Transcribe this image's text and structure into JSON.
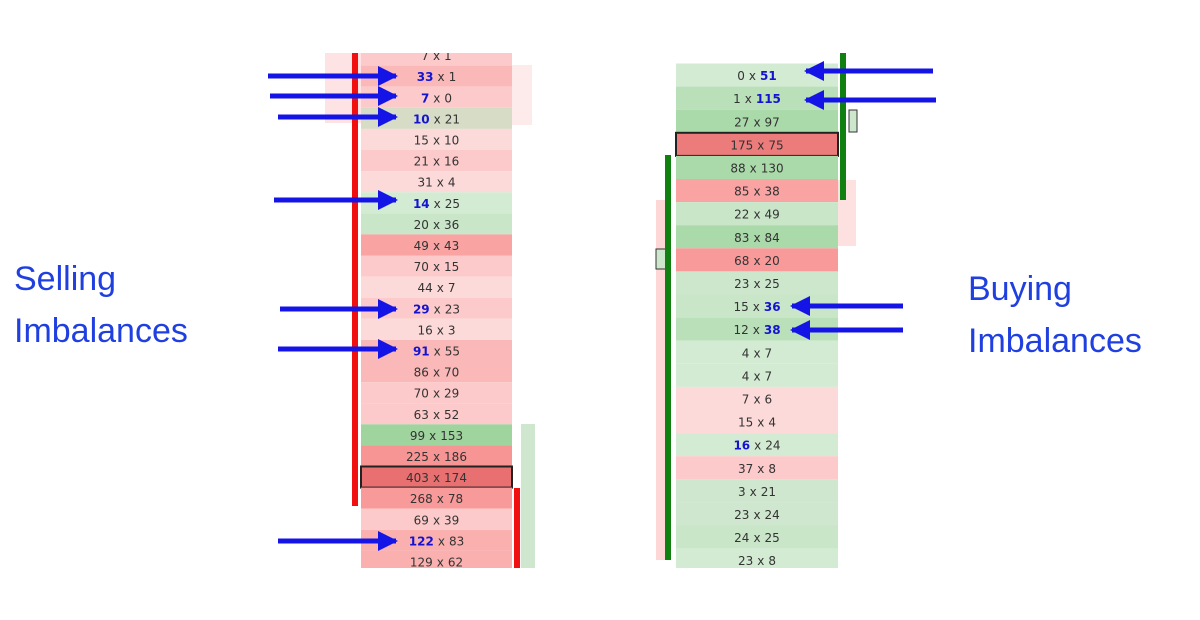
{
  "separator": "x",
  "selling_label": [
    "Selling",
    "Imbalances"
  ],
  "buying_label": [
    "Buying",
    "Imbalances"
  ],
  "left_ladder": {
    "rows": [
      {
        "bid": 7,
        "ask": 1,
        "color": "#fccaca"
      },
      {
        "bid": 33,
        "ask": 1,
        "color": "#fbb8b8",
        "imbalance": "bid"
      },
      {
        "bid": 7,
        "ask": 0,
        "color": "#fccaca",
        "imbalance": "bid"
      },
      {
        "bid": 10,
        "ask": 21,
        "color": "#d6dcc6",
        "imbalance": "bid"
      },
      {
        "bid": 15,
        "ask": 10,
        "color": "#fddada"
      },
      {
        "bid": 21,
        "ask": 16,
        "color": "#fccaca"
      },
      {
        "bid": 31,
        "ask": 4,
        "color": "#fddada"
      },
      {
        "bid": 14,
        "ask": 25,
        "color": "#d3ebd3",
        "imbalance": "bid"
      },
      {
        "bid": 20,
        "ask": 36,
        "color": "#c9e6c9"
      },
      {
        "bid": 49,
        "ask": 43,
        "color": "#f9a3a3"
      },
      {
        "bid": 70,
        "ask": 15,
        "color": "#fccaca"
      },
      {
        "bid": 44,
        "ask": 7,
        "color": "#fddada"
      },
      {
        "bid": 29,
        "ask": 23,
        "color": "#fccaca",
        "imbalance": "bid"
      },
      {
        "bid": 16,
        "ask": 3,
        "color": "#fddada"
      },
      {
        "bid": 91,
        "ask": 55,
        "color": "#fbb8b8",
        "imbalance": "bid"
      },
      {
        "bid": 86,
        "ask": 70,
        "color": "#fbb8b8"
      },
      {
        "bid": 70,
        "ask": 29,
        "color": "#fccaca"
      },
      {
        "bid": 63,
        "ask": 52,
        "color": "#fccaca"
      },
      {
        "bid": 99,
        "ask": 153,
        "color": "#9fd49f"
      },
      {
        "bid": 225,
        "ask": 186,
        "color": "#f79494"
      },
      {
        "bid": 403,
        "ask": 174,
        "color": "#e87070",
        "outline": true
      },
      {
        "bid": 268,
        "ask": 78,
        "color": "#f99a9a"
      },
      {
        "bid": 69,
        "ask": 39,
        "color": "#fccaca"
      },
      {
        "bid": 122,
        "ask": 83,
        "color": "#fbb0b0",
        "imbalance": "bid"
      },
      {
        "bid": 129,
        "ask": 62,
        "color": "#fbb0b0"
      }
    ]
  },
  "right_ladder": {
    "rows": [
      {
        "bid": 0,
        "ask": 51,
        "color": "#d3ebd3",
        "imbalance": "ask"
      },
      {
        "bid": 1,
        "ask": 115,
        "color": "#b9e0b9",
        "imbalance": "ask"
      },
      {
        "bid": 27,
        "ask": 97,
        "color": "#aad9aa"
      },
      {
        "bid": 175,
        "ask": 75,
        "color": "#ec7b7b",
        "outline": true
      },
      {
        "bid": 88,
        "ask": 130,
        "color": "#aad9aa"
      },
      {
        "bid": 85,
        "ask": 38,
        "color": "#f9a3a3"
      },
      {
        "bid": 22,
        "ask": 49,
        "color": "#c9e6c9"
      },
      {
        "bid": 83,
        "ask": 84,
        "color": "#aad9aa"
      },
      {
        "bid": 68,
        "ask": 20,
        "color": "#f99a9a"
      },
      {
        "bid": 23,
        "ask": 25,
        "color": "#cde7cd"
      },
      {
        "bid": 15,
        "ask": 36,
        "color": "#c9e6c9",
        "imbalance": "ask"
      },
      {
        "bid": 12,
        "ask": 38,
        "color": "#b9e0b9",
        "imbalance": "ask"
      },
      {
        "bid": 4,
        "ask": 7,
        "color": "#d3ebd3"
      },
      {
        "bid": 4,
        "ask": 7,
        "color": "#d3ebd3"
      },
      {
        "bid": 7,
        "ask": 6,
        "color": "#fddada"
      },
      {
        "bid": 15,
        "ask": 4,
        "color": "#fddada"
      },
      {
        "bid": 16,
        "ask": 24,
        "color": "#d3ebd3",
        "imbalance": "bid"
      },
      {
        "bid": 37,
        "ask": 8,
        "color": "#fccaca"
      },
      {
        "bid": 3,
        "ask": 21,
        "color": "#cfe7cf"
      },
      {
        "bid": 23,
        "ask": 24,
        "color": "#cfe7cf"
      },
      {
        "bid": 24,
        "ask": 25,
        "color": "#c9e6c9"
      },
      {
        "bid": 23,
        "ask": 8,
        "color": "#d3ebd3"
      }
    ]
  }
}
